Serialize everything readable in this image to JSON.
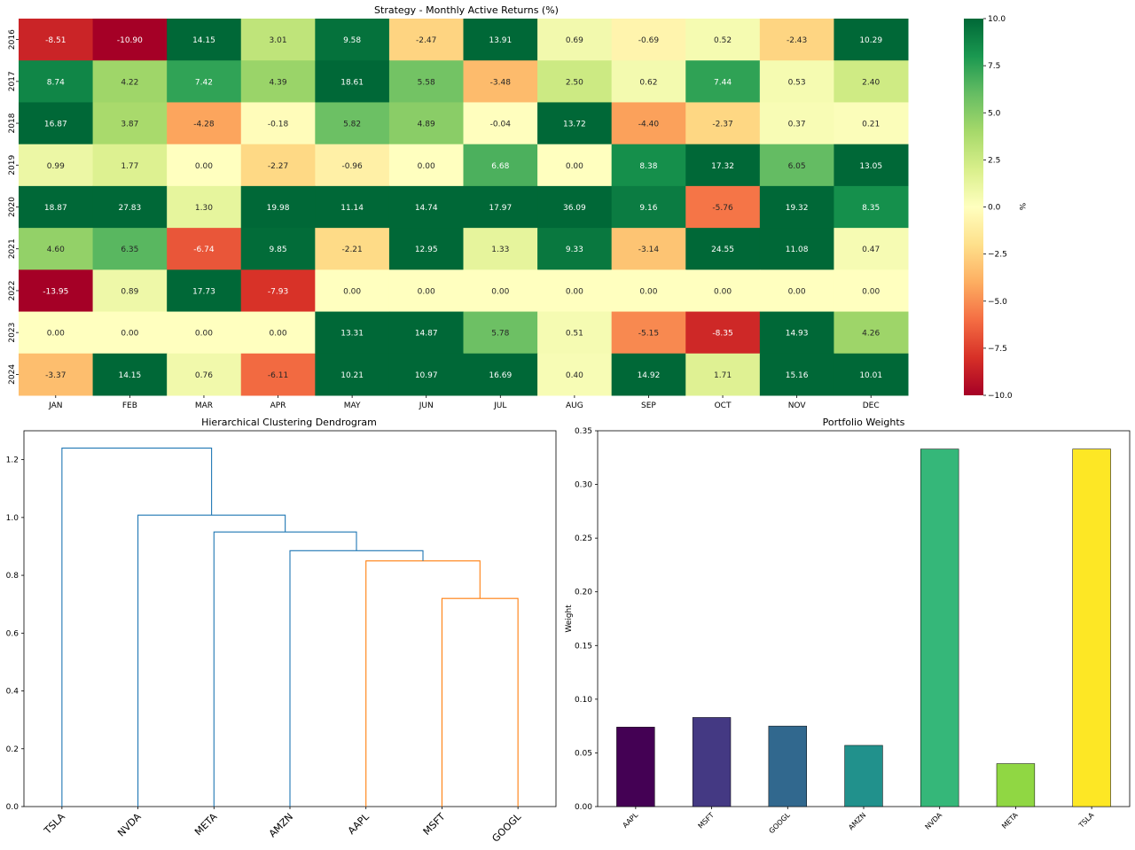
{
  "chart_data": [
    {
      "type": "heatmap",
      "title": "Strategy - Monthly Active Returns (%)",
      "x": [
        "JAN",
        "FEB",
        "MAR",
        "APR",
        "MAY",
        "JUN",
        "JUL",
        "AUG",
        "SEP",
        "OCT",
        "NOV",
        "DEC"
      ],
      "y": [
        "2016",
        "2017",
        "2018",
        "2019",
        "2020",
        "2021",
        "2022",
        "2023",
        "2024"
      ],
      "values": [
        [
          -8.51,
          -10.9,
          14.15,
          3.01,
          9.58,
          -2.47,
          13.91,
          0.69,
          -0.69,
          0.52,
          -2.43,
          10.29
        ],
        [
          8.74,
          4.22,
          7.42,
          4.39,
          18.61,
          5.58,
          -3.48,
          2.5,
          0.62,
          7.44,
          0.53,
          2.4
        ],
        [
          16.87,
          3.87,
          -4.28,
          -0.18,
          5.82,
          4.89,
          -0.04,
          13.72,
          -4.4,
          -2.37,
          0.37,
          0.21
        ],
        [
          0.99,
          1.77,
          0.0,
          -2.27,
          -0.96,
          0.0,
          6.68,
          0.0,
          8.38,
          17.32,
          6.05,
          13.05
        ],
        [
          18.87,
          27.83,
          1.3,
          19.98,
          11.14,
          14.74,
          17.97,
          36.09,
          9.16,
          -5.76,
          19.32,
          8.35
        ],
        [
          4.6,
          6.35,
          -6.74,
          9.85,
          -2.21,
          12.95,
          1.33,
          9.33,
          -3.14,
          24.55,
          11.08,
          0.47
        ],
        [
          -13.95,
          0.89,
          17.73,
          -7.93,
          0.0,
          0.0,
          0.0,
          0.0,
          0.0,
          0.0,
          0.0,
          0.0
        ],
        [
          0.0,
          0.0,
          0.0,
          0.0,
          13.31,
          14.87,
          5.78,
          0.51,
          -5.15,
          -8.35,
          14.93,
          4.26
        ],
        [
          -3.37,
          14.15,
          0.76,
          -6.11,
          10.21,
          10.97,
          16.69,
          0.4,
          14.92,
          1.71,
          15.16,
          10.01
        ]
      ],
      "colorbar": {
        "label": "%",
        "range": [
          -10,
          10
        ],
        "ticks": [
          10.0,
          7.5,
          5.0,
          2.5,
          0.0,
          -2.5,
          -5.0,
          -7.5,
          -10.0
        ],
        "tick_labels": [
          "10.0",
          "7.5",
          "5.0",
          "2.5",
          "0.0",
          "−2.5",
          "−5.0",
          "−7.5",
          "−10.0"
        ],
        "colormap": "RdYlGn"
      }
    },
    {
      "type": "dendrogram",
      "title": "Hierarchical Clustering Dendrogram",
      "leaves": [
        "TSLA",
        "NVDA",
        "META",
        "AMZN",
        "AAPL",
        "MSFT",
        "GOOGL"
      ],
      "ylim": [
        0,
        1.3
      ],
      "yticks": [
        0.0,
        0.2,
        0.4,
        0.6,
        0.8,
        1.0,
        1.2
      ],
      "ytick_labels": [
        "0.0",
        "0.2",
        "0.4",
        "0.6",
        "0.8",
        "1.0",
        "1.2"
      ],
      "links": [
        {
          "left": [
            5.5,
            0
          ],
          "right": [
            6.5,
            0
          ],
          "height": 0.72,
          "color": "#ff7f0e"
        },
        {
          "left": [
            4.5,
            0
          ],
          "right": [
            6.0,
            0.72
          ],
          "height": 0.85,
          "color": "#ff7f0e"
        },
        {
          "left": [
            3.5,
            0
          ],
          "right": [
            5.25,
            0.85
          ],
          "height": 0.885,
          "color": "#1f77b4"
        },
        {
          "left": [
            2.5,
            0
          ],
          "right": [
            4.375,
            0.885
          ],
          "height": 0.95,
          "color": "#1f77b4"
        },
        {
          "left": [
            1.5,
            0
          ],
          "right": [
            3.4375,
            0.95
          ],
          "height": 1.008,
          "color": "#1f77b4"
        },
        {
          "left": [
            0.5,
            0
          ],
          "right": [
            2.46875,
            1.008
          ],
          "height": 1.24,
          "color": "#1f77b4"
        }
      ]
    },
    {
      "type": "bar",
      "title": "Portfolio Weights",
      "categories": [
        "AAPL",
        "MSFT",
        "GOOGL",
        "AMZN",
        "NVDA",
        "META",
        "TSLA"
      ],
      "values": [
        0.074,
        0.083,
        0.075,
        0.057,
        0.333,
        0.04,
        0.333
      ],
      "colors": [
        "#440154",
        "#443983",
        "#31688e",
        "#21918c",
        "#35b779",
        "#90d743",
        "#fde725"
      ],
      "ylabel": "Weight",
      "ylim": [
        0,
        0.35
      ],
      "yticks": [
        0.0,
        0.05,
        0.1,
        0.15,
        0.2,
        0.25,
        0.3,
        0.35
      ],
      "ytick_labels": [
        "0.00",
        "0.05",
        "0.10",
        "0.15",
        "0.20",
        "0.25",
        "0.30",
        "0.35"
      ]
    }
  ]
}
